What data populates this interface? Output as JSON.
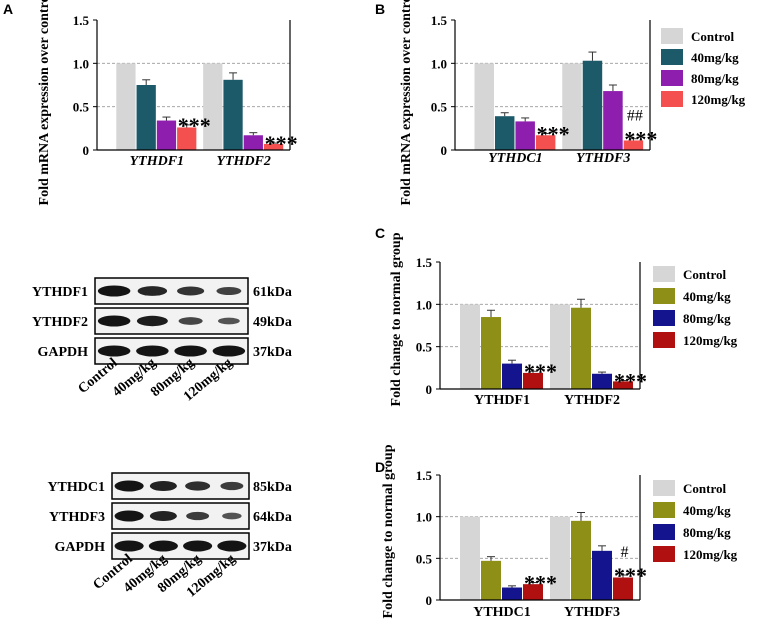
{
  "chart_data": [
    {
      "id": "A",
      "type": "bar",
      "panel_label": "A",
      "ylabel": "Fold mRNA expression over control group",
      "ylim": [
        0,
        1.5
      ],
      "yticks": [
        "0",
        "0.5",
        "1.0",
        "1.5"
      ],
      "categories": [
        "YTHDF1",
        "YTHDF2"
      ],
      "category_italic": true,
      "series": [
        {
          "name": "Control",
          "values": [
            1.0,
            1.0
          ],
          "errors": [
            0,
            0
          ]
        },
        {
          "name": "40mg/kg",
          "values": [
            0.75,
            0.81
          ],
          "errors": [
            0.06,
            0.08
          ]
        },
        {
          "name": "80mg/kg",
          "values": [
            0.34,
            0.17
          ],
          "errors": [
            0.04,
            0.03
          ]
        },
        {
          "name": "120mg/kg",
          "values": [
            0.26,
            0.07
          ],
          "errors": [
            0.03,
            0.01
          ]
        }
      ],
      "annotations": [
        {
          "category": 0,
          "series": 3,
          "text": "***"
        },
        {
          "category": 1,
          "series": 3,
          "text": "***"
        }
      ]
    },
    {
      "id": "B",
      "type": "bar",
      "panel_label": "B",
      "ylabel": "Fold mRNA expression over control group",
      "ylim": [
        0,
        1.5
      ],
      "yticks": [
        "0",
        "0.5",
        "1.0",
        "1.5"
      ],
      "categories": [
        "YTHDC1",
        "YTHDF3"
      ],
      "category_italic": true,
      "series": [
        {
          "name": "Control",
          "values": [
            1.0,
            1.0
          ],
          "errors": [
            0,
            0
          ]
        },
        {
          "name": "40mg/kg",
          "values": [
            0.39,
            1.03
          ],
          "errors": [
            0.04,
            0.1
          ]
        },
        {
          "name": "80mg/kg",
          "values": [
            0.33,
            0.68
          ],
          "errors": [
            0.04,
            0.07
          ]
        },
        {
          "name": "120mg/kg",
          "values": [
            0.17,
            0.11
          ],
          "errors": [
            0.02,
            0.02
          ]
        }
      ],
      "annotations": [
        {
          "category": 0,
          "series": 3,
          "text": "***"
        },
        {
          "category": 1,
          "series": 3,
          "text": "***"
        },
        {
          "category": 1,
          "series": 3,
          "text": "##"
        }
      ],
      "legend": [
        "Control",
        "40mg/kg",
        "80mg/kg",
        "120mg/kg"
      ]
    },
    {
      "id": "C",
      "type": "bar",
      "panel_label": "C",
      "ylabel": "Fold change to normal group",
      "ylim": [
        0,
        1.5
      ],
      "yticks": [
        "0",
        "0.5",
        "1.0",
        "1.5"
      ],
      "categories": [
        "YTHDF1",
        "YTHDF2"
      ],
      "category_italic": false,
      "series": [
        {
          "name": "Control",
          "values": [
            1.0,
            1.0
          ],
          "errors": [
            0,
            0
          ]
        },
        {
          "name": "40mg/kg",
          "values": [
            0.85,
            0.96
          ],
          "errors": [
            0.08,
            0.1
          ]
        },
        {
          "name": "80mg/kg",
          "values": [
            0.3,
            0.18
          ],
          "errors": [
            0.04,
            0.02
          ]
        },
        {
          "name": "120mg/kg",
          "values": [
            0.19,
            0.09
          ],
          "errors": [
            0.02,
            0.01
          ]
        }
      ],
      "annotations": [
        {
          "category": 0,
          "series": 3,
          "text": "***"
        },
        {
          "category": 1,
          "series": 3,
          "text": "***"
        }
      ],
      "legend": [
        "Control",
        "40mg/kg",
        "80mg/kg",
        "120mg/kg"
      ]
    },
    {
      "id": "D",
      "type": "bar",
      "panel_label": "D",
      "ylabel": "Fold change to normal group",
      "ylim": [
        0,
        1.5
      ],
      "yticks": [
        "0",
        "0.5",
        "1.0",
        "1.5"
      ],
      "categories": [
        "YTHDC1",
        "YTHDF3"
      ],
      "category_italic": false,
      "series": [
        {
          "name": "Control",
          "values": [
            1.0,
            1.0
          ],
          "errors": [
            0,
            0
          ]
        },
        {
          "name": "40mg/kg",
          "values": [
            0.47,
            0.95
          ],
          "errors": [
            0.05,
            0.1
          ]
        },
        {
          "name": "80mg/kg",
          "values": [
            0.15,
            0.59
          ],
          "errors": [
            0.02,
            0.06
          ]
        },
        {
          "name": "120mg/kg",
          "values": [
            0.19,
            0.27
          ],
          "errors": [
            0.02,
            0.03
          ]
        }
      ],
      "annotations": [
        {
          "category": 0,
          "series": 3,
          "text": "***"
        },
        {
          "category": 1,
          "series": 3,
          "text": "***"
        },
        {
          "category": 1,
          "series": 3,
          "text": "#"
        }
      ],
      "legend": [
        "Control",
        "40mg/kg",
        "80mg/kg",
        "120mg/kg"
      ]
    }
  ],
  "palettes": {
    "AB": [
      "#d6d6d6",
      "#1c5a6a",
      "#8e1fae",
      "#f4504f"
    ],
    "CD": [
      "#d6d6d6",
      "#8e8f16",
      "#14148e",
      "#b01010"
    ]
  },
  "blots": [
    {
      "rows": [
        "YTHDF1",
        "YTHDF2",
        "GAPDH"
      ],
      "sizes": [
        "61kDa",
        "49kDa",
        "37kDa"
      ],
      "lanes": [
        "Control",
        "40mg/kg",
        "80mg/kg",
        "120mg/kg"
      ],
      "band_intensity": [
        [
          1.0,
          0.8,
          0.65,
          0.5
        ],
        [
          1.0,
          0.9,
          0.45,
          0.3
        ],
        [
          1.0,
          1.0,
          1.0,
          1.0
        ]
      ]
    },
    {
      "rows": [
        "YTHDC1",
        "YTHDF3",
        "GAPDH"
      ],
      "sizes": [
        "85kDa",
        "64kDa",
        "37kDa"
      ],
      "lanes": [
        "Control",
        "40mg/kg",
        "80mg/kg",
        "120mg/kg"
      ],
      "band_intensity": [
        [
          1.0,
          0.85,
          0.7,
          0.55
        ],
        [
          1.0,
          0.85,
          0.55,
          0.3
        ],
        [
          1.0,
          1.0,
          1.0,
          1.0
        ]
      ]
    }
  ]
}
